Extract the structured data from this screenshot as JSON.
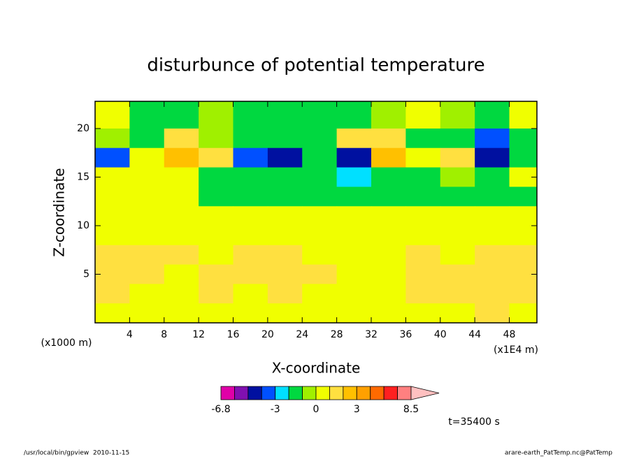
{
  "chart_data": {
    "type": "contour",
    "title": "disturbunce of potential temperature",
    "x_label": "X-coordinate",
    "y_label": "Z-coordinate",
    "x_unit": "(x1E4 m)",
    "y_unit": "(x1000 m)",
    "annotation": "t=35400 s",
    "footer_left": "/usr/local/bin/gpview  2010-11-15",
    "footer_right": "arare-earth_PatTemp.nc@PatTemp",
    "xlim": [
      0,
      51.2
    ],
    "ylim": [
      0,
      22.8
    ],
    "xticks": [
      4,
      8,
      12,
      16,
      20,
      24,
      28,
      32,
      36,
      40,
      44,
      48
    ],
    "yticks": [
      5,
      10,
      15,
      20
    ],
    "x": [
      2,
      6,
      10,
      14,
      18,
      22,
      26,
      30,
      34,
      38,
      42,
      46,
      50
    ],
    "y": [
      21,
      19,
      17,
      15,
      13,
      11,
      9,
      7,
      5,
      3,
      1
    ],
    "z": [
      [
        0.5,
        -1.5,
        -1.5,
        -0.5,
        -1.5,
        -1.5,
        -1.5,
        -1.5,
        -0.5,
        0.5,
        -0.5,
        -1.5,
        0.5
      ],
      [
        -0.5,
        -1.5,
        1.5,
        -0.5,
        -1.5,
        -1.5,
        -1.5,
        1.5,
        1.5,
        -1.5,
        -1.5,
        -3.5,
        -1.5
      ],
      [
        -3.5,
        0.5,
        2.5,
        1.5,
        -3.5,
        -4.5,
        -1.5,
        -4.5,
        2.5,
        0.5,
        1.5,
        -4.5,
        -1.5
      ],
      [
        0.5,
        0.5,
        0.5,
        -1.5,
        -1.5,
        -1.5,
        -1.5,
        -2.5,
        -1.5,
        -1.5,
        -0.5,
        -1.5,
        0.5
      ],
      [
        0.5,
        0.5,
        0.5,
        -1.5,
        -1.5,
        -1.5,
        -1.5,
        -1.5,
        -1.5,
        -1.5,
        -1.5,
        -1.5,
        -1.5
      ],
      [
        0.5,
        0.5,
        0.5,
        0.5,
        0.5,
        0.5,
        0.5,
        0.5,
        0.5,
        0.5,
        0.5,
        0.5,
        0.5
      ],
      [
        0.5,
        0.5,
        0.5,
        0.5,
        0.5,
        0.5,
        0.5,
        0.5,
        0.5,
        0.5,
        0.5,
        0.5,
        0.5
      ],
      [
        1.5,
        1.5,
        1.5,
        0.5,
        1.5,
        1.5,
        0.5,
        0.5,
        0.5,
        1.5,
        0.5,
        1.5,
        1.5
      ],
      [
        1.5,
        1.5,
        0.5,
        1.5,
        1.5,
        1.5,
        1.5,
        0.5,
        0.5,
        1.5,
        1.5,
        1.5,
        1.5
      ],
      [
        1.5,
        0.5,
        0.5,
        1.5,
        0.5,
        1.5,
        0.5,
        0.5,
        0.5,
        1.5,
        1.5,
        1.5,
        1.5
      ],
      [
        0.5,
        0.5,
        0.5,
        0.5,
        0.5,
        0.5,
        0.5,
        0.5,
        0.5,
        0.5,
        0.5,
        1.5,
        0.5
      ]
    ],
    "levels": [
      -6.8,
      -6,
      -5,
      -4,
      -3,
      -2,
      -1,
      0,
      1,
      2,
      3,
      4,
      5,
      6,
      8.5
    ],
    "level_colors": [
      "#e000a8",
      "#8010b0",
      "#0010a0",
      "#0050ff",
      "#00e0ff",
      "#00d840",
      "#a0f000",
      "#f0ff00",
      "#ffe040",
      "#ffc000",
      "#ffa000",
      "#ff6a00",
      "#ff2020",
      "#ff8080",
      "#ffc0c0"
    ],
    "colorbar_ticks": [
      -6.8,
      -3,
      0,
      3,
      8.5
    ]
  }
}
